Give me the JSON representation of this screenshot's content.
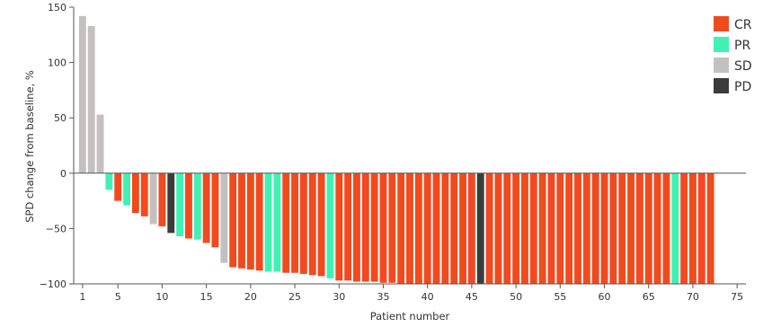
{
  "chart_data": {
    "type": "bar",
    "title": "",
    "xlabel": "Patient number",
    "ylabel": "SPD change from baseline, %",
    "ylim": [
      -100,
      150
    ],
    "yticks": [
      150,
      100,
      50,
      0,
      -50,
      -100
    ],
    "ytick_labels": [
      "150",
      "100",
      "50",
      "0",
      "−50",
      "−100"
    ],
    "xlim": [
      0,
      76
    ],
    "xticks": [
      1,
      5,
      10,
      15,
      20,
      25,
      30,
      35,
      40,
      45,
      50,
      55,
      60,
      65,
      70,
      75
    ],
    "grid": false,
    "legend_position": "top-right",
    "legend": [
      {
        "key": "CR",
        "label": "CR",
        "color": "#f04a1e"
      },
      {
        "key": "PR",
        "label": "PR",
        "color": "#3ff2b4"
      },
      {
        "key": "SD",
        "label": "SD",
        "color": "#c4c0c0"
      },
      {
        "key": "PD",
        "label": "PD",
        "color": "#3b3b3b"
      }
    ],
    "x": [
      1,
      2,
      3,
      4,
      5,
      6,
      7,
      8,
      9,
      10,
      11,
      12,
      13,
      14,
      15,
      16,
      17,
      18,
      19,
      20,
      21,
      22,
      23,
      24,
      25,
      26,
      27,
      28,
      29,
      30,
      31,
      32,
      33,
      34,
      35,
      36,
      37,
      38,
      39,
      40,
      41,
      42,
      43,
      44,
      45,
      46,
      47,
      48,
      49,
      50,
      51,
      52,
      53,
      54,
      55,
      56,
      57,
      58,
      59,
      60,
      61,
      62,
      63,
      64,
      65,
      66,
      67,
      68,
      69,
      70,
      71,
      72
    ],
    "values": [
      142,
      133,
      53,
      -15,
      -25,
      -29,
      -36,
      -39,
      -46,
      -48,
      -54,
      -57,
      -59,
      -60,
      -63,
      -67,
      -81,
      -85,
      -86,
      -87,
      -88,
      -89,
      -89,
      -90,
      -90,
      -91,
      -92,
      -93,
      -95,
      -97,
      -97,
      -98,
      -98,
      -98,
      -99,
      -99,
      -100,
      -100,
      -100,
      -100,
      -100,
      -100,
      -100,
      -100,
      -100,
      -100,
      -100,
      -100,
      -100,
      -100,
      -100,
      -100,
      -100,
      -100,
      -100,
      -100,
      -100,
      -100,
      -100,
      -100,
      -100,
      -100,
      -100,
      -100,
      -100,
      -100,
      -100,
      -100,
      -100,
      -100,
      -100,
      -100
    ],
    "response": [
      "SD",
      "SD",
      "SD",
      "PR",
      "CR",
      "PR",
      "CR",
      "CR",
      "SD",
      "CR",
      "PD",
      "PR",
      "CR",
      "PR",
      "CR",
      "CR",
      "SD",
      "CR",
      "CR",
      "CR",
      "CR",
      "PR",
      "PR",
      "CR",
      "CR",
      "CR",
      "CR",
      "CR",
      "PR",
      "CR",
      "CR",
      "CR",
      "CR",
      "CR",
      "CR",
      "CR",
      "CR",
      "CR",
      "CR",
      "CR",
      "CR",
      "CR",
      "CR",
      "CR",
      "CR",
      "PD",
      "CR",
      "CR",
      "CR",
      "CR",
      "CR",
      "CR",
      "CR",
      "CR",
      "CR",
      "CR",
      "CR",
      "CR",
      "CR",
      "CR",
      "CR",
      "CR",
      "CR",
      "CR",
      "CR",
      "CR",
      "CR",
      "PR",
      "CR",
      "CR",
      "CR",
      "CR"
    ]
  }
}
